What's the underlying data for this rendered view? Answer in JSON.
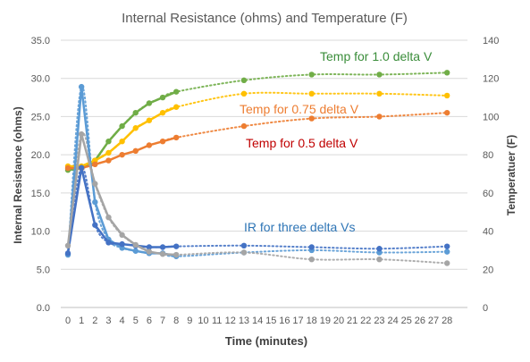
{
  "chart_data": {
    "type": "line",
    "title": "Internal Resistance (ohms) and Temperature (F)",
    "xlabel": "Time (minutes)",
    "ylabel_left": "Internal Resistance (ohms)",
    "ylabel_right": "Temperatuer (F)",
    "x_ticks": [
      0,
      1,
      2,
      3,
      4,
      5,
      6,
      7,
      8,
      9,
      10,
      11,
      12,
      13,
      14,
      15,
      16,
      17,
      18,
      19,
      20,
      21,
      22,
      23,
      24,
      25,
      26,
      27,
      28
    ],
    "ylim_left": [
      0,
      35
    ],
    "yticks_left": [
      "0.0",
      "5.0",
      "10.0",
      "15.0",
      "20.0",
      "25.0",
      "30.0",
      "35.0"
    ],
    "ylim_right": [
      0,
      140
    ],
    "yticks_right": [
      "0",
      "20",
      "40",
      "60",
      "80",
      "100",
      "120",
      "140"
    ],
    "grid": "horizontal",
    "series": [
      {
        "axis": "right",
        "color": "#70ad47",
        "x": [
          0,
          1,
          2,
          3,
          4,
          5,
          6,
          7,
          8,
          13,
          18,
          23,
          28
        ],
        "y": [
          72,
          73,
          77,
          87,
          95,
          102,
          107,
          110,
          113,
          119,
          122,
          122,
          123
        ]
      },
      {
        "axis": "right",
        "color": "#ffc000",
        "x": [
          0,
          1,
          2,
          3,
          4,
          5,
          6,
          7,
          8,
          13,
          18,
          23,
          28
        ],
        "y": [
          74,
          74,
          77,
          81,
          87,
          94,
          98,
          102,
          105,
          112,
          112,
          112,
          111
        ]
      },
      {
        "axis": "right",
        "color": "#ed7d31",
        "x": [
          0,
          1,
          2,
          3,
          4,
          5,
          6,
          7,
          8,
          13,
          18,
          23,
          28
        ],
        "y": [
          73,
          73,
          75,
          77,
          80,
          82,
          85,
          87,
          89,
          95,
          99,
          100,
          102
        ]
      },
      {
        "axis": "left",
        "color": "#5b9bd5",
        "x": [
          0,
          1,
          2,
          3,
          4,
          5,
          6,
          7,
          8,
          13,
          18,
          23,
          28
        ],
        "y": [
          6.9,
          28.9,
          13.8,
          8.9,
          7.8,
          7.4,
          7.1,
          7.1,
          6.7,
          7.2,
          7.5,
          7.2,
          7.3
        ]
      },
      {
        "axis": "left",
        "color": "#4472c4",
        "x": [
          0,
          1,
          2,
          3,
          4,
          5,
          6,
          7,
          8,
          13,
          18,
          23,
          28
        ],
        "y": [
          7.1,
          18.3,
          10.8,
          8.5,
          8.3,
          8.1,
          7.9,
          7.9,
          8.0,
          8.1,
          7.9,
          7.7,
          8.0
        ]
      },
      {
        "axis": "left",
        "color": "#a5a5a5",
        "x": [
          0,
          1,
          2,
          3,
          4,
          5,
          6,
          7,
          8,
          13,
          18,
          23,
          28
        ],
        "y": [
          8.1,
          22.7,
          16.2,
          11.8,
          9.5,
          8.2,
          7.3,
          7.0,
          6.9,
          7.2,
          6.3,
          6.3,
          5.8
        ]
      }
    ],
    "annotations": [
      {
        "text": "Temp for 1.0 delta V",
        "color": "#3a8d3a"
      },
      {
        "text": "Temp for 0.75 delta V",
        "color": "#ed7d31"
      },
      {
        "text": "Temp for 0.5 delta V",
        "color": "#c00000"
      },
      {
        "text": "IR for three delta Vs",
        "color": "#2e75b6"
      }
    ]
  }
}
